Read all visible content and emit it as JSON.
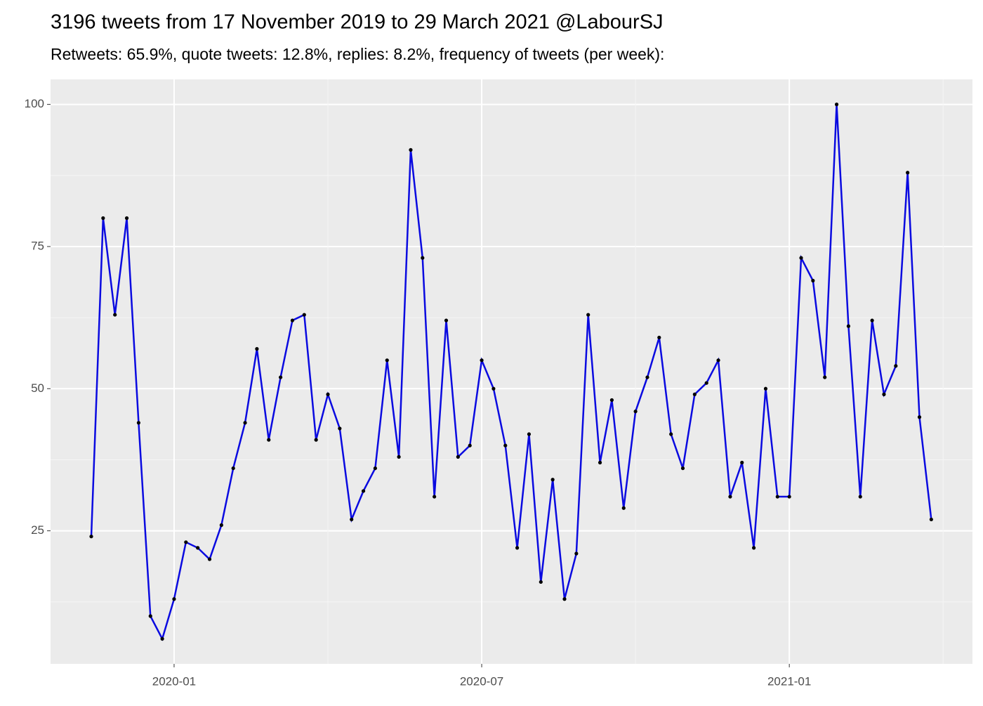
{
  "chart_data": {
    "type": "line",
    "title": "3196 tweets from 17 November 2019 to 29 March 2021 @LabourSJ",
    "subtitle": "Retweets: 65.9%, quote tweets: 12.8%, replies: 8.2%, frequency of tweets (per week):",
    "categories": [
      null,
      null,
      null,
      null,
      null,
      null,
      null,
      "2020-01",
      null,
      null,
      null,
      null,
      null,
      null,
      null,
      null,
      null,
      null,
      null,
      null,
      null,
      null,
      null,
      null,
      null,
      null,
      null,
      null,
      null,
      null,
      null,
      null,
      null,
      "2020-07",
      null,
      null,
      null,
      null,
      null,
      null,
      null,
      null,
      null,
      null,
      null,
      null,
      null,
      null,
      null,
      null,
      null,
      null,
      null,
      null,
      null,
      null,
      null,
      null,
      null,
      "2021-01",
      null,
      null,
      null,
      null,
      null,
      null,
      null,
      null,
      null,
      null,
      null,
      null
    ],
    "values": [
      24,
      80,
      63,
      80,
      44,
      10,
      6,
      13,
      23,
      22,
      20,
      26,
      36,
      44,
      57,
      41,
      52,
      62,
      63,
      41,
      49,
      43,
      27,
      32,
      36,
      55,
      38,
      92,
      73,
      31,
      62,
      38,
      40,
      55,
      50,
      40,
      22,
      42,
      16,
      34,
      13,
      21,
      63,
      37,
      48,
      29,
      46,
      52,
      59,
      42,
      36,
      49,
      51,
      55,
      31,
      37,
      22,
      50,
      31,
      31,
      73,
      69,
      52,
      100,
      61,
      31,
      62,
      49,
      54,
      88,
      45,
      27
    ],
    "color": "#0a0ae0",
    "point_color": "#000000",
    "ylim": [
      1.6,
      104.4
    ],
    "yticks": [
      25,
      50,
      75,
      100
    ],
    "grid": true
  }
}
